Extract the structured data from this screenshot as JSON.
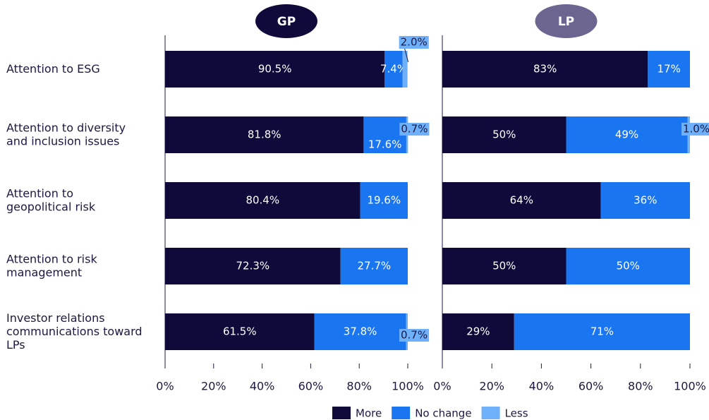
{
  "chart_data": [
    {
      "type": "bar",
      "orientation": "horizontal",
      "stacked": true,
      "title": "GP",
      "categories": [
        "Attention to ESG",
        "Attention to diversity and inclusion issues",
        "Attention to geopolitical risk",
        "Attention to risk management",
        "Investor relations communications toward LPs"
      ],
      "series": [
        {
          "name": "More",
          "color": "#0f0a3a",
          "values": [
            90.5,
            81.8,
            80.4,
            72.3,
            61.5
          ],
          "value_labels": [
            "90.5%",
            "81.8%",
            "80.4%",
            "72.3%",
            "61.5%"
          ]
        },
        {
          "name": "No change",
          "color": "#1a75f0",
          "values": [
            7.4,
            17.6,
            19.6,
            27.7,
            37.8
          ],
          "value_labels": [
            "7.4%",
            "17.6%",
            "19.6%",
            "27.7%",
            "37.8%"
          ]
        },
        {
          "name": "Less",
          "color": "#6fb0fb",
          "values": [
            2.0,
            0.7,
            null,
            null,
            0.7
          ],
          "value_labels": [
            "2.0%",
            "0.7%",
            null,
            null,
            "0.7%"
          ]
        }
      ],
      "xlim": [
        0,
        100
      ],
      "xticks": [
        {
          "value": 0,
          "label": "0%"
        },
        {
          "value": 20,
          "label": "20%"
        },
        {
          "value": 40,
          "label": "40%"
        },
        {
          "value": 60,
          "label": "60%"
        },
        {
          "value": 80,
          "label": "80%"
        },
        {
          "value": 100,
          "label": "100%"
        }
      ],
      "legend": "bottom"
    },
    {
      "type": "bar",
      "orientation": "horizontal",
      "stacked": true,
      "title": "LP",
      "series": [
        {
          "name": "More",
          "color": "#0f0a3a",
          "values": [
            83,
            50,
            64,
            50,
            29
          ],
          "value_labels": [
            "83%",
            "50%",
            "64%",
            "50%",
            "29%"
          ]
        },
        {
          "name": "No change",
          "color": "#1a75f0",
          "values": [
            17,
            49,
            36,
            50,
            71
          ],
          "value_labels": [
            "17%",
            "49%",
            "36%",
            "50%",
            "71%"
          ]
        },
        {
          "name": "Less",
          "color": "#6fb0fb",
          "values": [
            null,
            1.0,
            null,
            null,
            null
          ],
          "value_labels": [
            null,
            "1.0%",
            null,
            null,
            null
          ]
        }
      ],
      "xlim": [
        0,
        100
      ],
      "xticks": [
        {
          "value": 0,
          "label": "0%"
        },
        {
          "value": 20,
          "label": "20%"
        },
        {
          "value": 40,
          "label": "40%"
        },
        {
          "value": 60,
          "label": "60%"
        },
        {
          "value": 80,
          "label": "80%"
        },
        {
          "value": 100,
          "label": "100%"
        }
      ]
    }
  ]
}
